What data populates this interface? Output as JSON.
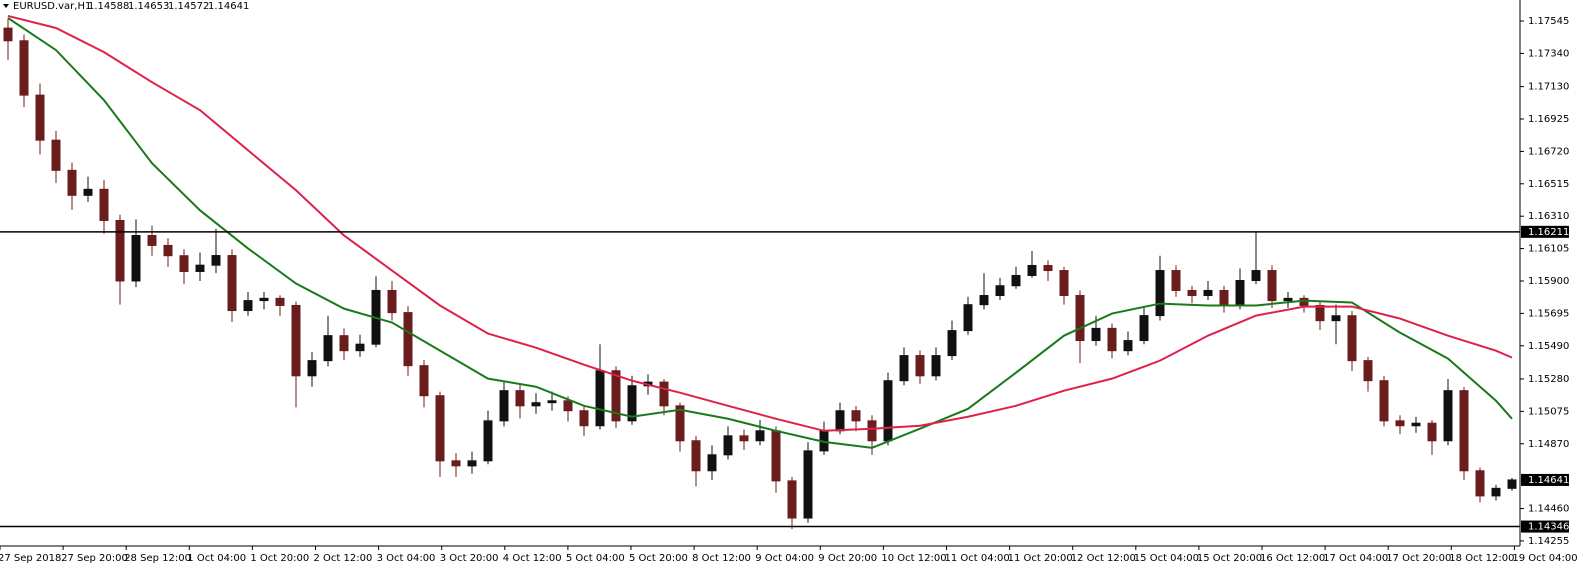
{
  "chart_data": {
    "type": "candlestick",
    "symbol": "EURUSD.var,H1",
    "ylim": [
      1.14223,
      1.17678
    ],
    "yticks": [
      1.17545,
      {
        "value": 1.1734,
        "label": "1.17340"
      },
      {
        "value": 1.1713,
        "label": "1.17130"
      },
      1.16925,
      {
        "value": 1.1672,
        "label": "1.16720"
      },
      1.16515,
      {
        "value": 1.1631,
        "label": "1.16310"
      },
      1.16105,
      {
        "value": 1.159,
        "label": "1.15900"
      },
      1.15695,
      {
        "value": 1.1549,
        "label": "1.15490"
      },
      {
        "value": 1.1528,
        "label": "1.15280"
      },
      1.15075,
      {
        "value": 1.1487,
        "label": "1.14870"
      },
      {
        "value": 1.1446,
        "label": "1.14460"
      },
      1.14255
    ],
    "xlabels": [
      "27 Sep 2018",
      "27 Sep 20:00",
      "28 Sep 12:00",
      "1 Oct 04:00",
      "1 Oct 20:00",
      "2 Oct 12:00",
      "3 Oct 04:00",
      "3 Oct 20:00",
      "4 Oct 12:00",
      "5 Oct 04:00",
      "5 Oct 20:00",
      "8 Oct 12:00",
      "9 Oct 04:00",
      "9 Oct 20:00",
      "10 Oct 12:00",
      "11 Oct 04:00",
      "11 Oct 20:00",
      "12 Oct 12:00",
      "15 Oct 04:00",
      "15 Oct 20:00",
      "16 Oct 12:00",
      "17 Oct 04:00",
      "17 Oct 20:00",
      "18 Oct 12:00",
      "19 Oct 04:00"
    ],
    "bull_color": "#111111",
    "bear_color": "#6b1c1c",
    "levels": [
      1.16211,
      1.14346
    ],
    "candles": [
      [
        1.175,
        1.1756,
        1.173,
        1.1742
      ],
      [
        1.1742,
        1.1746,
        1.17,
        1.17076
      ],
      [
        1.17076,
        1.1715,
        1.167,
        1.16791
      ],
      [
        1.16791,
        1.1685,
        1.1652,
        1.166
      ],
      [
        1.166,
        1.1665,
        1.1635,
        1.16442
      ],
      [
        1.16442,
        1.1656,
        1.164,
        1.1648
      ],
      [
        1.1648,
        1.1654,
        1.162,
        1.16283
      ],
      [
        1.16283,
        1.1632,
        1.1575,
        1.159
      ],
      [
        1.159,
        1.1629,
        1.1586,
        1.16188
      ],
      [
        1.16188,
        1.1625,
        1.1606,
        1.16125
      ],
      [
        1.16125,
        1.1617,
        1.1599,
        1.1606
      ],
      [
        1.1606,
        1.161,
        1.1588,
        1.1596
      ],
      [
        1.1596,
        1.1608,
        1.159,
        1.16
      ],
      [
        1.16,
        1.1623,
        1.1595,
        1.16061
      ],
      [
        1.16061,
        1.161,
        1.1564,
        1.15713
      ],
      [
        1.15713,
        1.1583,
        1.1568,
        1.15776
      ],
      [
        1.15776,
        1.1583,
        1.1572,
        1.1579
      ],
      [
        1.1579,
        1.1581,
        1.1568,
        1.15745
      ],
      [
        1.15745,
        1.1577,
        1.151,
        1.153
      ],
      [
        1.153,
        1.1545,
        1.1523,
        1.15396
      ],
      [
        1.15396,
        1.1568,
        1.1536,
        1.15554
      ],
      [
        1.15554,
        1.156,
        1.154,
        1.15459
      ],
      [
        1.15459,
        1.1556,
        1.1542,
        1.155
      ],
      [
        1.155,
        1.1593,
        1.1548,
        1.1584
      ],
      [
        1.1584,
        1.159,
        1.1565,
        1.157
      ],
      [
        1.157,
        1.1574,
        1.153,
        1.15364
      ],
      [
        1.15364,
        1.154,
        1.151,
        1.15174
      ],
      [
        1.15174,
        1.152,
        1.1466,
        1.14762
      ],
      [
        1.14762,
        1.1481,
        1.1466,
        1.1473
      ],
      [
        1.1473,
        1.1482,
        1.1468,
        1.14762
      ],
      [
        1.14762,
        1.1508,
        1.1474,
        1.15015
      ],
      [
        1.15015,
        1.1526,
        1.1498,
        1.15206
      ],
      [
        1.15206,
        1.1525,
        1.1503,
        1.1511
      ],
      [
        1.1511,
        1.1519,
        1.1506,
        1.1513
      ],
      [
        1.1513,
        1.152,
        1.1508,
        1.15142
      ],
      [
        1.15142,
        1.1517,
        1.1501,
        1.15079
      ],
      [
        1.15079,
        1.1511,
        1.1492,
        1.14984
      ],
      [
        1.14984,
        1.155,
        1.1496,
        1.15332
      ],
      [
        1.15332,
        1.1536,
        1.1497,
        1.15015
      ],
      [
        1.15015,
        1.153,
        1.1499,
        1.15237
      ],
      [
        1.15237,
        1.1531,
        1.1518,
        1.1526
      ],
      [
        1.1526,
        1.1528,
        1.1505,
        1.1511
      ],
      [
        1.1511,
        1.1513,
        1.1482,
        1.14889
      ],
      [
        1.14889,
        1.1492,
        1.146,
        1.14699
      ],
      [
        1.14699,
        1.1486,
        1.1464,
        1.148
      ],
      [
        1.148,
        1.1498,
        1.1477,
        1.1492
      ],
      [
        1.1492,
        1.1496,
        1.1483,
        1.14889
      ],
      [
        1.14889,
        1.1502,
        1.1486,
        1.14952
      ],
      [
        1.14952,
        1.1498,
        1.1456,
        1.14635
      ],
      [
        1.14635,
        1.1466,
        1.1433,
        1.144
      ],
      [
        1.144,
        1.1488,
        1.1437,
        1.14825
      ],
      [
        1.14825,
        1.1501,
        1.148,
        1.14952
      ],
      [
        1.14952,
        1.1513,
        1.1493,
        1.15079
      ],
      [
        1.15079,
        1.1511,
        1.1495,
        1.15015
      ],
      [
        1.15015,
        1.1505,
        1.148,
        1.14889
      ],
      [
        1.14889,
        1.1532,
        1.1486,
        1.15269
      ],
      [
        1.15269,
        1.1548,
        1.1524,
        1.15428
      ],
      [
        1.15428,
        1.1546,
        1.1525,
        1.153
      ],
      [
        1.153,
        1.1548,
        1.1527,
        1.15428
      ],
      [
        1.15428,
        1.1565,
        1.154,
        1.15586
      ],
      [
        1.15586,
        1.158,
        1.1556,
        1.1575
      ],
      [
        1.1575,
        1.1595,
        1.1572,
        1.15808
      ],
      [
        1.15808,
        1.1592,
        1.1578,
        1.1587
      ],
      [
        1.1587,
        1.1599,
        1.1585,
        1.15935
      ],
      [
        1.15935,
        1.1609,
        1.1592,
        1.15998
      ],
      [
        1.15998,
        1.1603,
        1.159,
        1.15966
      ],
      [
        1.15966,
        1.1599,
        1.1575,
        1.15808
      ],
      [
        1.15808,
        1.1584,
        1.1538,
        1.15523
      ],
      [
        1.15523,
        1.1568,
        1.1549,
        1.156
      ],
      [
        1.156,
        1.1563,
        1.1541,
        1.15459
      ],
      [
        1.15459,
        1.1558,
        1.1543,
        1.15523
      ],
      [
        1.15523,
        1.1573,
        1.155,
        1.15681
      ],
      [
        1.15681,
        1.1606,
        1.1565,
        1.15966
      ],
      [
        1.15966,
        1.16,
        1.158,
        1.1584
      ],
      [
        1.1584,
        1.1587,
        1.1576,
        1.15808
      ],
      [
        1.15808,
        1.159,
        1.1578,
        1.1584
      ],
      [
        1.1584,
        1.1587,
        1.157,
        1.15745
      ],
      [
        1.15745,
        1.1598,
        1.1572,
        1.15903
      ],
      [
        1.15903,
        1.16211,
        1.1588,
        1.15966
      ],
      [
        1.15966,
        1.16,
        1.1573,
        1.15776
      ],
      [
        1.15776,
        1.1583,
        1.1573,
        1.1579
      ],
      [
        1.1579,
        1.1581,
        1.157,
        1.15745
      ],
      [
        1.15745,
        1.1577,
        1.1559,
        1.15649
      ],
      [
        1.15649,
        1.1575,
        1.155,
        1.1568
      ],
      [
        1.1568,
        1.1571,
        1.1533,
        1.15396
      ],
      [
        1.15396,
        1.1542,
        1.152,
        1.15269
      ],
      [
        1.15269,
        1.153,
        1.1498,
        1.15015
      ],
      [
        1.15015,
        1.1505,
        1.1493,
        1.14984
      ],
      [
        1.14984,
        1.1504,
        1.1494,
        1.15
      ],
      [
        1.15,
        1.1502,
        1.148,
        1.14889
      ],
      [
        1.14889,
        1.1528,
        1.1486,
        1.15206
      ],
      [
        1.15206,
        1.1523,
        1.1464,
        1.14699
      ],
      [
        1.14699,
        1.1472,
        1.145,
        1.1454
      ],
      [
        1.1454,
        1.1461,
        1.1451,
        1.14588
      ],
      [
        1.14588,
        1.14653,
        1.14572,
        1.14641
      ]
    ],
    "series": [
      {
        "color": "#1a7a1a",
        "x": [
          0,
          3,
          6,
          9,
          12,
          15,
          18,
          21,
          24,
          27,
          30,
          33,
          36,
          39,
          42,
          45,
          48,
          51,
          54,
          57,
          60,
          63,
          66,
          69,
          72,
          75,
          78,
          81,
          84,
          87,
          90,
          93,
          94
        ],
        "values": [
          1.17564,
          1.17361,
          1.17044,
          1.16645,
          1.16347,
          1.16106,
          1.15884,
          1.15725,
          1.15637,
          1.15459,
          1.15282,
          1.15231,
          1.1511,
          1.15041,
          1.15085,
          1.15028,
          1.14952,
          1.14882,
          1.14844,
          1.14965,
          1.15091,
          1.1532,
          1.15554,
          1.15694,
          1.15757,
          1.15745,
          1.15745,
          1.15776,
          1.15764,
          1.15573,
          1.15409,
          1.15142,
          1.15028
        ]
      },
      {
        "color": "#e0204a",
        "x": [
          0,
          3,
          6,
          9,
          12,
          15,
          18,
          21,
          24,
          27,
          30,
          33,
          36,
          39,
          42,
          45,
          48,
          51,
          54,
          57,
          60,
          63,
          66,
          69,
          72,
          75,
          78,
          81,
          84,
          87,
          90,
          93,
          94
        ],
        "values": [
          1.17577,
          1.17501,
          1.17348,
          1.17158,
          1.16981,
          1.16727,
          1.16474,
          1.16188,
          1.15966,
          1.15745,
          1.15567,
          1.15478,
          1.1537,
          1.15269,
          1.15193,
          1.1511,
          1.15028,
          1.14952,
          1.14965,
          1.14984,
          1.15041,
          1.1511,
          1.15206,
          1.15282,
          1.15396,
          1.15554,
          1.15681,
          1.15738,
          1.15738,
          1.15662,
          1.15554,
          1.15459,
          1.15415
        ]
      }
    ]
  }
}
